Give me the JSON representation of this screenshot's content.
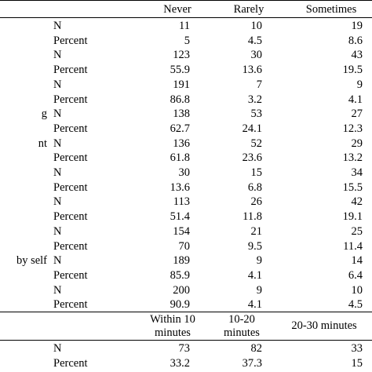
{
  "header1": {
    "col1": "Never",
    "col2": "Rarely",
    "col3": "Sometimes"
  },
  "rows1": [
    {
      "left": "",
      "kind": "N",
      "v": [
        "11",
        "10",
        "19"
      ]
    },
    {
      "left": "",
      "kind": "Percent",
      "v": [
        "5",
        "4.5",
        "8.6"
      ]
    },
    {
      "left": "",
      "kind": "N",
      "v": [
        "123",
        "30",
        "43"
      ]
    },
    {
      "left": "",
      "kind": "Percent",
      "v": [
        "55.9",
        "13.6",
        "19.5"
      ]
    },
    {
      "left": "",
      "kind": "N",
      "v": [
        "191",
        "7",
        "9"
      ]
    },
    {
      "left": "",
      "kind": "Percent",
      "v": [
        "86.8",
        "3.2",
        "4.1"
      ]
    },
    {
      "left": "g",
      "kind": "N",
      "v": [
        "138",
        "53",
        "27"
      ]
    },
    {
      "left": "",
      "kind": "Percent",
      "v": [
        "62.7",
        "24.1",
        "12.3"
      ]
    },
    {
      "left": "nt",
      "kind": "N",
      "v": [
        "136",
        "52",
        "29"
      ]
    },
    {
      "left": "",
      "kind": "Percent",
      "v": [
        "61.8",
        "23.6",
        "13.2"
      ]
    },
    {
      "left": "",
      "kind": "N",
      "v": [
        "30",
        "15",
        "34"
      ]
    },
    {
      "left": "",
      "kind": "Percent",
      "v": [
        "13.6",
        "6.8",
        "15.5"
      ]
    },
    {
      "left": "",
      "kind": "N",
      "v": [
        "113",
        "26",
        "42"
      ]
    },
    {
      "left": "",
      "kind": "Percent",
      "v": [
        "51.4",
        "11.8",
        "19.1"
      ]
    },
    {
      "left": "",
      "kind": "N",
      "v": [
        "154",
        "21",
        "25"
      ]
    },
    {
      "left": "",
      "kind": "Percent",
      "v": [
        "70",
        "9.5",
        "11.4"
      ]
    },
    {
      "left": "by self",
      "kind": "N",
      "v": [
        "189",
        "9",
        "14"
      ]
    },
    {
      "left": "",
      "kind": "Percent",
      "v": [
        "85.9",
        "4.1",
        "6.4"
      ]
    },
    {
      "left": "",
      "kind": "N",
      "v": [
        "200",
        "9",
        "10"
      ]
    },
    {
      "left": "",
      "kind": "Percent",
      "v": [
        "90.9",
        "4.1",
        "4.5"
      ]
    }
  ],
  "header2": {
    "col1_line1": "Within 10",
    "col1_line2": "minutes",
    "col2_line1": "10-20",
    "col2_line2": "minutes",
    "col3": "20-30 minutes"
  },
  "rows2": [
    {
      "left": "",
      "kind": "N",
      "v": [
        "73",
        "82",
        "33"
      ]
    },
    {
      "left": "",
      "kind": "Percent",
      "v": [
        "33.2",
        "37.3",
        "15"
      ]
    }
  ]
}
